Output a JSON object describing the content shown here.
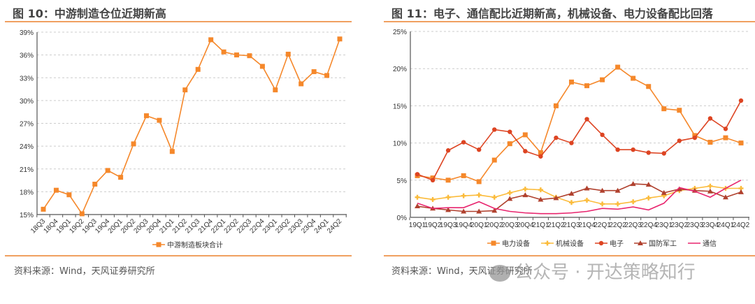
{
  "left_panel": {
    "title": "图 10：中游制造仓位近期新高",
    "source": "资料来源：Wind，天风证券研究所"
  },
  "right_panel": {
    "title": "图 11：电子、通信配比近期新高，机械设备、电力设备配比回落",
    "source": "资料来源：Wind，天风证券研究所"
  },
  "watermark": {
    "icon": "wechat-icon",
    "text": "公众号 · 开达策略知行"
  },
  "colors": {
    "rule": "#f0a060",
    "grid": "#cccccc",
    "axis": "#555555"
  },
  "chart_data": [
    {
      "type": "line",
      "title": "图 10：中游制造仓位近期新高",
      "xlabel": "",
      "ylabel": "",
      "ylim": [
        15,
        39
      ],
      "yticks": [
        "15%",
        "18%",
        "21%",
        "24%",
        "27%",
        "30%",
        "33%",
        "36%",
        "39%"
      ],
      "ytick_values": [
        15,
        18,
        21,
        24,
        27,
        30,
        33,
        36,
        39
      ],
      "grid": true,
      "legend": "bottom",
      "categories": [
        "18Q3",
        "18Q4",
        "19Q1",
        "19Q2",
        "19Q3",
        "19Q4",
        "20Q1",
        "20Q2",
        "20Q3",
        "20Q4",
        "21Q1",
        "21Q2",
        "21Q3",
        "21Q4",
        "22Q1",
        "22Q2",
        "22Q3",
        "22Q4",
        "23Q1",
        "23Q2",
        "23Q3",
        "23Q4",
        "24Q1",
        "24Q2"
      ],
      "series": [
        {
          "name": "中游制造板块合计",
          "color": "#f5882b",
          "marker": "square",
          "values": [
            15.7,
            18.2,
            17.6,
            15.1,
            19.0,
            20.8,
            19.9,
            24.3,
            28.0,
            27.4,
            23.3,
            31.4,
            34.1,
            38.0,
            36.4,
            36.0,
            35.9,
            34.5,
            31.4,
            36.1,
            32.2,
            33.8,
            33.3,
            38.1
          ]
        }
      ]
    },
    {
      "type": "line",
      "title": "图 11：电子、通信配比近期新高，机械设备、电力设备配比回落",
      "xlabel": "",
      "ylabel": "",
      "ylim": [
        0,
        25
      ],
      "yticks": [
        "0%",
        "5%",
        "10%",
        "15%",
        "20%",
        "25%"
      ],
      "ytick_values": [
        0,
        5,
        10,
        15,
        20,
        25
      ],
      "grid": true,
      "legend": "bottom",
      "categories": [
        "19Q1",
        "19Q2",
        "19Q3",
        "19Q4",
        "20Q1",
        "20Q2",
        "20Q3",
        "20Q4",
        "21Q1",
        "21Q2",
        "21Q3",
        "21Q4",
        "22Q1",
        "22Q2",
        "22Q3",
        "22Q4",
        "23Q1",
        "23Q2",
        "23Q3",
        "23Q4",
        "24Q1",
        "24Q2"
      ],
      "series": [
        {
          "name": "电力设备",
          "color": "#f5882b",
          "marker": "square",
          "values": [
            5.6,
            5.3,
            5.0,
            5.6,
            4.8,
            7.7,
            9.9,
            11.1,
            8.7,
            15.0,
            18.2,
            17.7,
            18.5,
            20.2,
            18.7,
            17.6,
            14.6,
            14.4,
            11.0,
            10.1,
            10.7,
            10.0
          ]
        },
        {
          "name": "机械设备",
          "color": "#fbbb3a",
          "marker": "plus",
          "values": [
            2.7,
            2.4,
            2.7,
            2.9,
            3.0,
            2.7,
            3.3,
            3.8,
            3.7,
            2.7,
            2.0,
            2.3,
            1.8,
            1.8,
            2.1,
            2.6,
            2.9,
            3.6,
            3.9,
            4.2,
            3.9,
            3.9
          ]
        },
        {
          "name": "电子",
          "color": "#dd4422",
          "marker": "circle",
          "values": [
            5.8,
            5.0,
            9.0,
            10.1,
            9.1,
            11.8,
            11.5,
            8.9,
            8.2,
            10.7,
            10.0,
            13.2,
            11.1,
            9.1,
            9.1,
            8.7,
            8.6,
            10.3,
            10.7,
            13.3,
            11.9,
            15.7
          ]
        },
        {
          "name": "国防军工",
          "color": "#b0412e",
          "marker": "triangle",
          "values": [
            1.5,
            1.2,
            1.0,
            0.8,
            0.8,
            0.9,
            2.5,
            3.0,
            2.4,
            2.6,
            3.2,
            3.9,
            3.6,
            3.6,
            4.5,
            4.4,
            3.3,
            3.8,
            3.6,
            3.5,
            2.7,
            3.4
          ]
        },
        {
          "name": "通信",
          "color": "#e8256e",
          "marker": "none",
          "values": [
            1.9,
            1.2,
            1.3,
            1.3,
            2.1,
            1.2,
            0.8,
            0.6,
            0.5,
            0.5,
            0.6,
            0.8,
            1.2,
            1.1,
            1.4,
            1.0,
            1.9,
            4.0,
            3.5,
            2.7,
            3.9,
            5.0
          ]
        }
      ]
    }
  ]
}
